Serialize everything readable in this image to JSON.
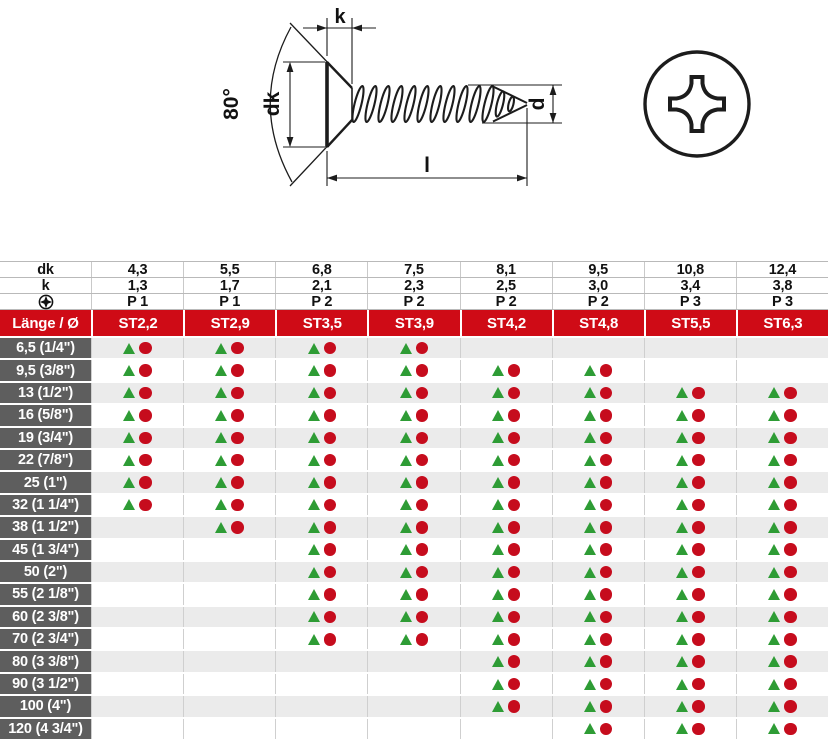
{
  "drawing": {
    "dim_labels": {
      "k": "k",
      "angle": "80°",
      "dk": "dk",
      "d": "d",
      "l": "l"
    },
    "phillips_icon": "phillips-recess-front-view"
  },
  "table": {
    "spec_rows": [
      {
        "label": "dk",
        "values": [
          "4,3",
          "5,5",
          "6,8",
          "7,5",
          "8,1",
          "9,5",
          "10,8",
          "12,4"
        ]
      },
      {
        "label": "k",
        "values": [
          "1,3",
          "1,7",
          "2,1",
          "2,3",
          "2,5",
          "3,0",
          "3,4",
          "3,8"
        ]
      },
      {
        "label": "phillips-icon",
        "icon": true,
        "values": [
          "P 1",
          "P 1",
          "P 2",
          "P 2",
          "P 2",
          "P 2",
          "P 3",
          "P 3"
        ]
      }
    ],
    "header": {
      "corner": "Länge / Ø",
      "columns": [
        "ST2,2",
        "ST2,9",
        "ST3,5",
        "ST3,9",
        "ST4,2",
        "ST4,8",
        "ST5,5",
        "ST6,3"
      ]
    },
    "rows": [
      {
        "length": "6,5 (1/4\")",
        "available": [
          1,
          1,
          1,
          1,
          0,
          0,
          0,
          0
        ]
      },
      {
        "length": "9,5 (3/8\")",
        "available": [
          1,
          1,
          1,
          1,
          1,
          1,
          0,
          0
        ]
      },
      {
        "length": "13 (1/2\")",
        "available": [
          1,
          1,
          1,
          1,
          1,
          1,
          1,
          1
        ]
      },
      {
        "length": "16 (5/8\")",
        "available": [
          1,
          1,
          1,
          1,
          1,
          1,
          1,
          1
        ]
      },
      {
        "length": "19 (3/4\")",
        "available": [
          1,
          1,
          1,
          1,
          1,
          1,
          1,
          1
        ]
      },
      {
        "length": "22 (7/8\")",
        "available": [
          1,
          1,
          1,
          1,
          1,
          1,
          1,
          1
        ]
      },
      {
        "length": "25 (1\")",
        "available": [
          1,
          1,
          1,
          1,
          1,
          1,
          1,
          1
        ]
      },
      {
        "length": "32 (1 1/4\")",
        "available": [
          1,
          1,
          1,
          1,
          1,
          1,
          1,
          1
        ]
      },
      {
        "length": "38 (1 1/2\")",
        "available": [
          0,
          1,
          1,
          1,
          1,
          1,
          1,
          1
        ]
      },
      {
        "length": "45 (1 3/4\")",
        "available": [
          0,
          0,
          1,
          1,
          1,
          1,
          1,
          1
        ]
      },
      {
        "length": "50 (2\")",
        "available": [
          0,
          0,
          1,
          1,
          1,
          1,
          1,
          1
        ]
      },
      {
        "length": "55 (2 1/8\")",
        "available": [
          0,
          0,
          1,
          1,
          1,
          1,
          1,
          1
        ]
      },
      {
        "length": "60 (2 3/8\")",
        "available": [
          0,
          0,
          1,
          1,
          1,
          1,
          1,
          1
        ]
      },
      {
        "length": "70 (2 3/4\")",
        "available": [
          0,
          0,
          1,
          1,
          1,
          1,
          1,
          1
        ]
      },
      {
        "length": "80 (3 3/8\")",
        "available": [
          0,
          0,
          0,
          0,
          1,
          1,
          1,
          1
        ]
      },
      {
        "length": "90 (3 1/2\")",
        "available": [
          0,
          0,
          0,
          0,
          1,
          1,
          1,
          1
        ]
      },
      {
        "length": "100 (4\")",
        "available": [
          0,
          0,
          0,
          0,
          1,
          1,
          1,
          1
        ]
      },
      {
        "length": "120 (4 3/4\")",
        "available": [
          0,
          0,
          0,
          0,
          0,
          1,
          1,
          1
        ]
      }
    ]
  },
  "colors": {
    "header_red": "#cf0b16",
    "row_label_gray": "#5e5e5e",
    "marker_green": "#2e9c35",
    "marker_red": "#c60c1d",
    "row_alt": "#ebebeb",
    "separator": "#c9c9c9"
  }
}
